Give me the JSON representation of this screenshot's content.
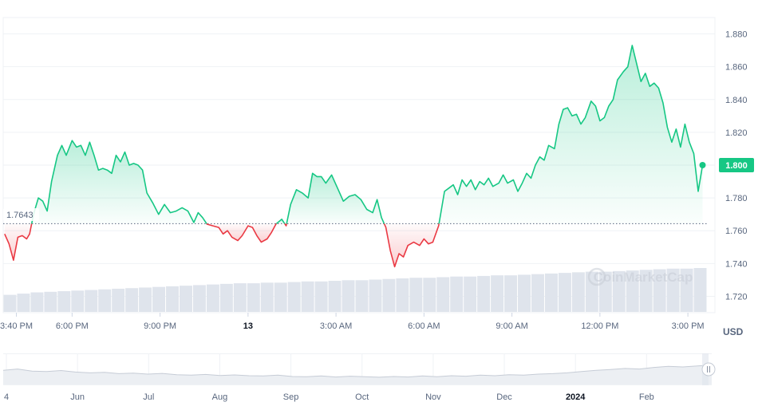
{
  "colors": {
    "up": "#16c784",
    "down": "#ea3943",
    "grid": "#eff2f5",
    "axis_text": "#58667e",
    "volume": "#dfe4ec",
    "navigator_fill": "#eceff3",
    "navigator_line": "#c6ccd6"
  },
  "watermark": "CoinMarketCap",
  "chart_data": {
    "type": "line",
    "currency": "USD",
    "baseline": 1.7643,
    "baseline_label": "1.7643",
    "current_price": 1.8,
    "current_price_label": "1.800",
    "ylim": [
      1.71,
      1.89
    ],
    "y_ticks": [
      {
        "value": 1.72,
        "label": "1.720"
      },
      {
        "value": 1.74,
        "label": "1.740"
      },
      {
        "value": 1.76,
        "label": "1.760"
      },
      {
        "value": 1.78,
        "label": "1.780"
      },
      {
        "value": 1.8,
        "label": "1.800"
      },
      {
        "value": 1.82,
        "label": "1.820"
      },
      {
        "value": 1.84,
        "label": "1.840"
      },
      {
        "value": 1.86,
        "label": "1.860"
      },
      {
        "value": 1.88,
        "label": "1.880"
      }
    ],
    "xlim": [
      0,
      24
    ],
    "x_ticks": [
      {
        "value": 0.45,
        "label": "3:40 PM",
        "bold": false
      },
      {
        "value": 2.35,
        "label": "6:00 PM",
        "bold": false
      },
      {
        "value": 5.35,
        "label": "9:00 PM",
        "bold": false
      },
      {
        "value": 8.35,
        "label": "13",
        "bold": true
      },
      {
        "value": 11.35,
        "label": "3:00 AM",
        "bold": false
      },
      {
        "value": 14.35,
        "label": "6:00 AM",
        "bold": false
      },
      {
        "value": 17.35,
        "label": "9:00 AM",
        "bold": false
      },
      {
        "value": 20.35,
        "label": "12:00 PM",
        "bold": false
      },
      {
        "value": 23.35,
        "label": "3:00 PM",
        "bold": false
      }
    ],
    "series": [
      {
        "values": [
          [
            0.05,
            1.758
          ],
          [
            0.2,
            1.752
          ],
          [
            0.35,
            1.742
          ],
          [
            0.5,
            1.756
          ],
          [
            0.65,
            1.757
          ],
          [
            0.8,
            1.755
          ],
          [
            0.9,
            1.758
          ],
          [
            1.05,
            1.771
          ],
          [
            1.2,
            1.78
          ],
          [
            1.35,
            1.778
          ],
          [
            1.5,
            1.772
          ],
          [
            1.65,
            1.79
          ],
          [
            1.85,
            1.806
          ],
          [
            2.0,
            1.812
          ],
          [
            2.15,
            1.806
          ],
          [
            2.35,
            1.815
          ],
          [
            2.5,
            1.811
          ],
          [
            2.65,
            1.812
          ],
          [
            2.8,
            1.806
          ],
          [
            2.95,
            1.814
          ],
          [
            3.1,
            1.806
          ],
          [
            3.25,
            1.797
          ],
          [
            3.4,
            1.798
          ],
          [
            3.55,
            1.797
          ],
          [
            3.7,
            1.795
          ],
          [
            3.85,
            1.806
          ],
          [
            4.0,
            1.802
          ],
          [
            4.15,
            1.808
          ],
          [
            4.3,
            1.8
          ],
          [
            4.45,
            1.801
          ],
          [
            4.6,
            1.8
          ],
          [
            4.75,
            1.797
          ],
          [
            4.9,
            1.783
          ],
          [
            5.1,
            1.777
          ],
          [
            5.3,
            1.77
          ],
          [
            5.5,
            1.776
          ],
          [
            5.7,
            1.771
          ],
          [
            5.9,
            1.772
          ],
          [
            6.1,
            1.774
          ],
          [
            6.3,
            1.772
          ],
          [
            6.5,
            1.765
          ],
          [
            6.65,
            1.771
          ],
          [
            6.8,
            1.768
          ],
          [
            6.95,
            1.764
          ],
          [
            7.15,
            1.763
          ],
          [
            7.35,
            1.762
          ],
          [
            7.5,
            1.758
          ],
          [
            7.65,
            1.76
          ],
          [
            7.8,
            1.756
          ],
          [
            8.0,
            1.754
          ],
          [
            8.15,
            1.757
          ],
          [
            8.35,
            1.763
          ],
          [
            8.5,
            1.762
          ],
          [
            8.65,
            1.757
          ],
          [
            8.8,
            1.753
          ],
          [
            9.0,
            1.755
          ],
          [
            9.15,
            1.759
          ],
          [
            9.3,
            1.764
          ],
          [
            9.5,
            1.767
          ],
          [
            9.65,
            1.763
          ],
          [
            9.8,
            1.776
          ],
          [
            10.0,
            1.785
          ],
          [
            10.2,
            1.783
          ],
          [
            10.4,
            1.78
          ],
          [
            10.55,
            1.795
          ],
          [
            10.7,
            1.793
          ],
          [
            10.85,
            1.793
          ],
          [
            11.0,
            1.789
          ],
          [
            11.2,
            1.794
          ],
          [
            11.4,
            1.786
          ],
          [
            11.6,
            1.778
          ],
          [
            11.8,
            1.781
          ],
          [
            12.0,
            1.782
          ],
          [
            12.2,
            1.779
          ],
          [
            12.4,
            1.773
          ],
          [
            12.6,
            1.771
          ],
          [
            12.75,
            1.779
          ],
          [
            12.9,
            1.768
          ],
          [
            13.05,
            1.762
          ],
          [
            13.2,
            1.748
          ],
          [
            13.35,
            1.738
          ],
          [
            13.5,
            1.746
          ],
          [
            13.65,
            1.744
          ],
          [
            13.8,
            1.751
          ],
          [
            14.0,
            1.753
          ],
          [
            14.2,
            1.751
          ],
          [
            14.35,
            1.755
          ],
          [
            14.5,
            1.752
          ],
          [
            14.65,
            1.753
          ],
          [
            14.85,
            1.763
          ],
          [
            15.05,
            1.784
          ],
          [
            15.2,
            1.786
          ],
          [
            15.35,
            1.788
          ],
          [
            15.5,
            1.782
          ],
          [
            15.65,
            1.791
          ],
          [
            15.8,
            1.787
          ],
          [
            15.95,
            1.791
          ],
          [
            16.1,
            1.785
          ],
          [
            16.25,
            1.79
          ],
          [
            16.4,
            1.788
          ],
          [
            16.55,
            1.792
          ],
          [
            16.7,
            1.787
          ],
          [
            16.9,
            1.789
          ],
          [
            17.05,
            1.794
          ],
          [
            17.2,
            1.789
          ],
          [
            17.4,
            1.791
          ],
          [
            17.55,
            1.784
          ],
          [
            17.7,
            1.789
          ],
          [
            17.85,
            1.795
          ],
          [
            18.0,
            1.792
          ],
          [
            18.15,
            1.8
          ],
          [
            18.3,
            1.805
          ],
          [
            18.45,
            1.803
          ],
          [
            18.6,
            1.812
          ],
          [
            18.8,
            1.81
          ],
          [
            18.95,
            1.825
          ],
          [
            19.1,
            1.834
          ],
          [
            19.25,
            1.835
          ],
          [
            19.4,
            1.83
          ],
          [
            19.55,
            1.831
          ],
          [
            19.7,
            1.825
          ],
          [
            19.85,
            1.829
          ],
          [
            20.05,
            1.839
          ],
          [
            20.2,
            1.836
          ],
          [
            20.35,
            1.827
          ],
          [
            20.5,
            1.829
          ],
          [
            20.65,
            1.836
          ],
          [
            20.8,
            1.84
          ],
          [
            20.95,
            1.852
          ],
          [
            21.15,
            1.857
          ],
          [
            21.3,
            1.86
          ],
          [
            21.45,
            1.873
          ],
          [
            21.6,
            1.862
          ],
          [
            21.75,
            1.851
          ],
          [
            21.9,
            1.856
          ],
          [
            22.05,
            1.848
          ],
          [
            22.2,
            1.85
          ],
          [
            22.35,
            1.847
          ],
          [
            22.5,
            1.838
          ],
          [
            22.65,
            1.823
          ],
          [
            22.8,
            1.814
          ],
          [
            22.95,
            1.822
          ],
          [
            23.1,
            1.811
          ],
          [
            23.25,
            1.825
          ],
          [
            23.4,
            1.814
          ],
          [
            23.55,
            1.807
          ],
          [
            23.7,
            1.784
          ],
          [
            23.85,
            1.8
          ]
        ]
      }
    ],
    "volume": [
      0.28,
      0.3,
      0.32,
      0.33,
      0.34,
      0.35,
      0.36,
      0.37,
      0.38,
      0.39,
      0.4,
      0.41,
      0.42,
      0.43,
      0.44,
      0.45,
      0.46,
      0.47,
      0.47,
      0.48,
      0.48,
      0.49,
      0.5,
      0.5,
      0.51,
      0.52,
      0.52,
      0.53,
      0.54,
      0.55,
      0.56,
      0.56,
      0.57,
      0.58,
      0.58,
      0.59,
      0.6,
      0.6,
      0.61,
      0.62,
      0.63,
      0.64,
      0.65,
      0.66,
      0.66,
      0.67,
      0.68,
      0.69,
      0.7,
      0.71,
      0.71,
      0.72
    ],
    "navigator_x_ticks": [
      {
        "value": 0.5,
        "label": "4",
        "bold": false
      },
      {
        "value": 1.5,
        "label": "Jun",
        "bold": false
      },
      {
        "value": 2.5,
        "label": "Jul",
        "bold": false
      },
      {
        "value": 3.5,
        "label": "Aug",
        "bold": false
      },
      {
        "value": 4.5,
        "label": "Sep",
        "bold": false
      },
      {
        "value": 5.5,
        "label": "Oct",
        "bold": false
      },
      {
        "value": 6.5,
        "label": "Nov",
        "bold": false
      },
      {
        "value": 7.5,
        "label": "Dec",
        "bold": false
      },
      {
        "value": 8.5,
        "label": "2024",
        "bold": true
      },
      {
        "value": 9.5,
        "label": "Feb",
        "bold": false
      }
    ],
    "navigator_xlim": [
      0.5,
      9.9
    ],
    "navigator_series": [
      0.55,
      0.6,
      0.52,
      0.5,
      0.54,
      0.48,
      0.45,
      0.47,
      0.42,
      0.44,
      0.4,
      0.43,
      0.38,
      0.36,
      0.39,
      0.35,
      0.37,
      0.34,
      0.33,
      0.36,
      0.31,
      0.3,
      0.33,
      0.29,
      0.32,
      0.3,
      0.28,
      0.31,
      0.29,
      0.33,
      0.3,
      0.34,
      0.32,
      0.36,
      0.34,
      0.38,
      0.36,
      0.4,
      0.42,
      0.45,
      0.5,
      0.55,
      0.58,
      0.62,
      0.6,
      0.66,
      0.7,
      0.68,
      0.72,
      0.75
    ]
  }
}
